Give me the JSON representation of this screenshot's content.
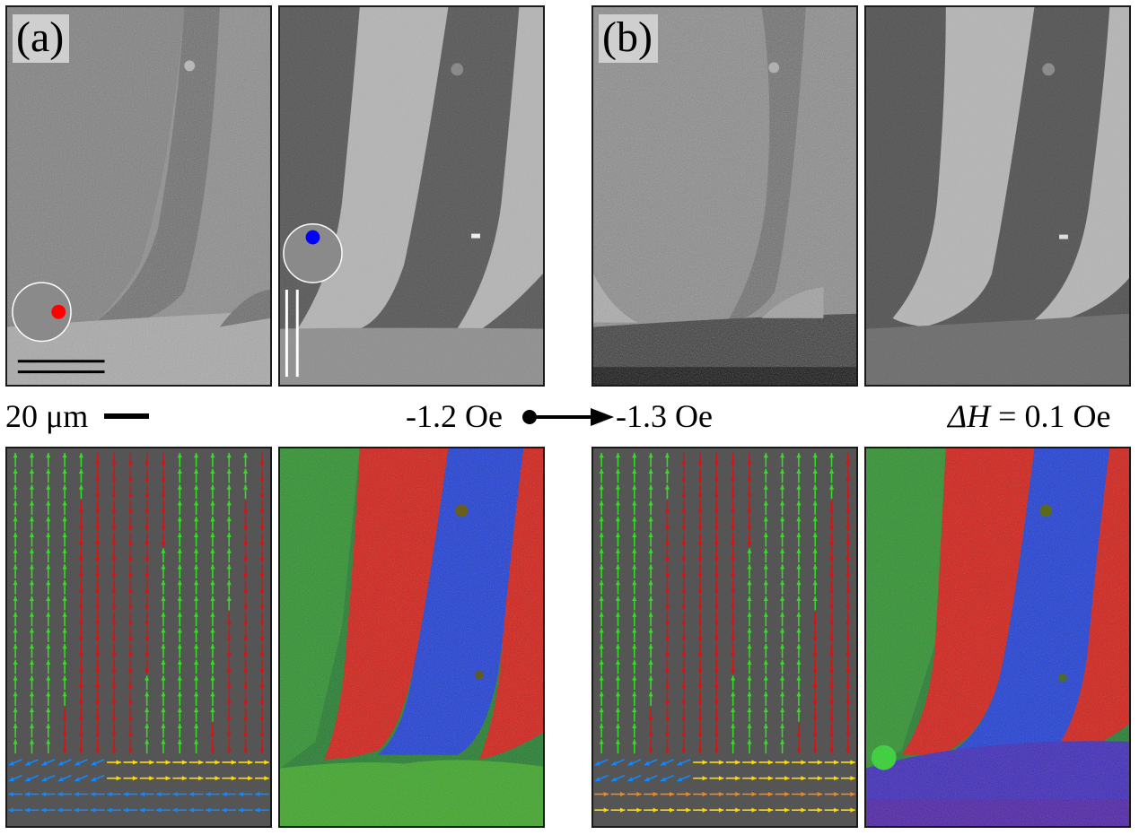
{
  "figure": {
    "panel_a_label": "(a)",
    "panel_b_label": "(b)",
    "scale_value": "20 μm",
    "field_start": "-1.2 Oe",
    "field_end": "-1.3 Oe",
    "delta_symbol": "ΔH",
    "delta_value": " = 0.1 Oe"
  },
  "colors": {
    "vector_background": "#555555",
    "up_domain": "#33dd22",
    "down_domain": "#dd1111",
    "left_domain": "#1188ff",
    "right_domain": "#ffdd00",
    "intermediate": "#ee8822",
    "indicator_red": "#ff0000",
    "indicator_blue": "#0000ff"
  }
}
